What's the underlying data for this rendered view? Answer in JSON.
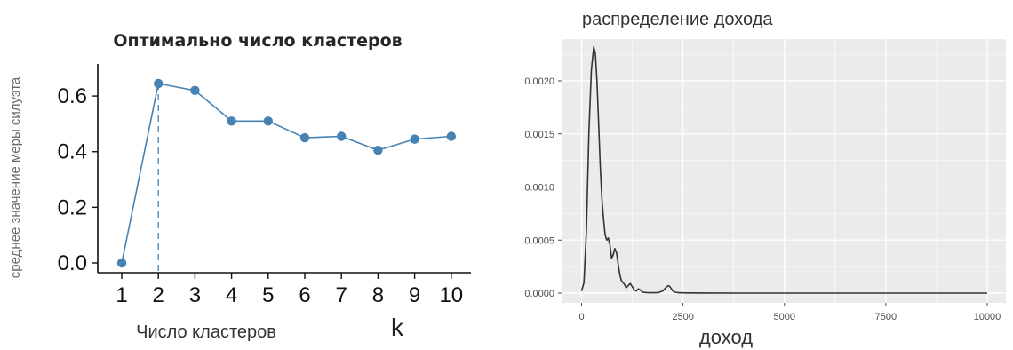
{
  "chart_data": [
    {
      "type": "line",
      "title": "Оптимально число кластеров",
      "xlabel": "Число кластеров",
      "x_symbol": "k",
      "ylabel": "среднее значение меры силуэта",
      "x": [
        1,
        2,
        3,
        4,
        5,
        6,
        7,
        8,
        9,
        10
      ],
      "y": [
        0.0,
        0.645,
        0.62,
        0.51,
        0.51,
        0.45,
        0.455,
        0.405,
        0.445,
        0.455
      ],
      "xticks": [
        "1",
        "2",
        "3",
        "4",
        "5",
        "6",
        "7",
        "8",
        "9",
        "10"
      ],
      "yticks": [
        "0.0",
        "0.2",
        "0.4",
        "0.6"
      ],
      "ylim": [
        0,
        0.68
      ],
      "vline_x": 2,
      "color": "#4682b4",
      "grid": false
    },
    {
      "type": "area",
      "title": "распределение дохода",
      "xlabel": "доход",
      "xticks": [
        "0",
        "2500",
        "5000",
        "7500",
        "10000"
      ],
      "yticks": [
        "0.0000",
        "0.0005",
        "0.0010",
        "0.0015",
        "0.0020"
      ],
      "xlim": [
        -500,
        10500
      ],
      "ylim": [
        -3e-05,
        0.00233
      ],
      "x": [
        0,
        60,
        120,
        180,
        240,
        300,
        340,
        380,
        420,
        460,
        500,
        540,
        580,
        620,
        660,
        700,
        740,
        780,
        820,
        860,
        900,
        940,
        980,
        1020,
        1060,
        1100,
        1150,
        1200,
        1250,
        1300,
        1350,
        1400,
        1450,
        1500,
        1600,
        1700,
        1800,
        1900,
        2000,
        2050,
        2100,
        2150,
        2200,
        2250,
        2300,
        2400,
        2600,
        3000,
        4000,
        6000,
        8000,
        10000
      ],
      "y": [
        2e-05,
        0.0001,
        0.0006,
        0.0015,
        0.0021,
        0.00232,
        0.00226,
        0.002,
        0.0016,
        0.0012,
        0.0009,
        0.0007,
        0.00055,
        0.0005,
        0.00052,
        0.00045,
        0.00033,
        0.00036,
        0.00042,
        0.00038,
        0.00028,
        0.00018,
        0.00012,
        0.0001,
        8e-05,
        5e-05,
        7e-05,
        9e-05,
        6e-05,
        3e-05,
        2e-05,
        4e-05,
        3e-05,
        1e-05,
        5e-06,
        3e-06,
        3e-06,
        5e-06,
        2e-05,
        4e-05,
        6e-05,
        7e-05,
        5e-05,
        2e-05,
        8e-06,
        3e-06,
        2e-06,
        1e-06,
        0.0,
        0.0,
        0.0,
        0.0
      ],
      "panel_color": "#ebebeb",
      "grid_color": "#ffffff",
      "line_color": "#333333",
      "grid": true
    }
  ]
}
